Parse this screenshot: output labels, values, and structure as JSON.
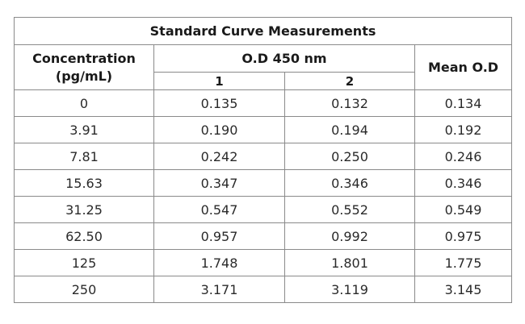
{
  "table": {
    "title": "Standard Curve Measurements",
    "headers": {
      "concentration": "Concentration (pg/mL)",
      "od_group": "O.D 450 nm",
      "rep1": "1",
      "rep2": "2",
      "mean": "Mean O.D"
    },
    "rows": [
      {
        "conc": "0",
        "r1": "0.135",
        "r2": "0.132",
        "mean": "0.134"
      },
      {
        "conc": "3.91",
        "r1": "0.190",
        "r2": "0.194",
        "mean": "0.192"
      },
      {
        "conc": "7.81",
        "r1": "0.242",
        "r2": "0.250",
        "mean": "0.246"
      },
      {
        "conc": "15.63",
        "r1": "0.347",
        "r2": "0.346",
        "mean": "0.346"
      },
      {
        "conc": "31.25",
        "r1": "0.547",
        "r2": "0.552",
        "mean": "0.549"
      },
      {
        "conc": "62.50",
        "r1": "0.957",
        "r2": "0.992",
        "mean": "0.975"
      },
      {
        "conc": "125",
        "r1": "1.748",
        "r2": "1.801",
        "mean": "1.775"
      },
      {
        "conc": "250",
        "r1": "3.171",
        "r2": "3.119",
        "mean": "3.145"
      }
    ]
  }
}
